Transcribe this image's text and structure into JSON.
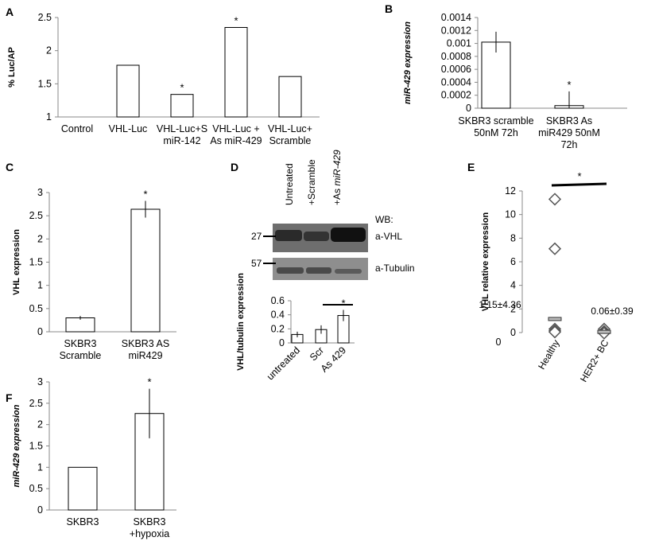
{
  "chart_data": [
    {
      "panel": "A",
      "type": "bar",
      "ylabel": "% Luc/AP",
      "ylim": [
        1,
        2.5
      ],
      "yticks": [
        "1",
        "1.5",
        "2",
        "2.5"
      ],
      "ytick_values": [
        1,
        1.5,
        2,
        2.5
      ],
      "categories": [
        [
          "Control"
        ],
        [
          "VHL-Luc"
        ],
        [
          "VHL-Luc+S",
          "miR-142"
        ],
        [
          "VHL-Luc +",
          "As miR-429"
        ],
        [
          "VHL-Luc+",
          "Scramble"
        ]
      ],
      "values": [
        1.0,
        1.78,
        1.34,
        2.35,
        1.61
      ],
      "stars": [
        "",
        "",
        "*",
        "*",
        ""
      ]
    },
    {
      "panel": "B",
      "type": "bar",
      "ylabel": "miR-429 expression",
      "ylim": [
        0,
        0.0014
      ],
      "yticks": [
        "0",
        "0.0002",
        "0.0004",
        "0.0006",
        "0.0008",
        "0.001",
        "0.0012",
        "0.0014"
      ],
      "ytick_values": [
        0,
        0.0002,
        0.0004,
        0.0006,
        0.0008,
        0.001,
        0.0012,
        0.0014
      ],
      "categories": [
        [
          "SKBR3 scramble",
          "50nM 72h"
        ],
        [
          "SKBR3 As",
          "miR429 50nM",
          "72h"
        ]
      ],
      "values": [
        0.00102,
        4e-05
      ],
      "errors": [
        0.00016,
        0.00022
      ],
      "stars": [
        "",
        "*"
      ]
    },
    {
      "panel": "C",
      "type": "bar",
      "ylabel": "VHL expression",
      "ylim": [
        0,
        3
      ],
      "yticks": [
        "0",
        "0.5",
        "1",
        "1.5",
        "2",
        "2.5",
        "3"
      ],
      "ytick_values": [
        0,
        0.5,
        1,
        1.5,
        2,
        2.5,
        3
      ],
      "categories": [
        [
          "SKBR3",
          "Scramble"
        ],
        [
          "SKBR3 AS",
          "miR429"
        ]
      ],
      "values": [
        0.3,
        2.64
      ],
      "errors": [
        0.04,
        0.18
      ],
      "stars": [
        "",
        "*"
      ]
    },
    {
      "panel": "D",
      "type": "bar",
      "ylabel": "VHL/tubulin expression",
      "ylim": [
        0,
        0.6
      ],
      "yticks": [
        "0",
        "0.2",
        "0.4",
        "0.6"
      ],
      "ytick_values": [
        0,
        0.2,
        0.4,
        0.6
      ],
      "categories": [
        "untreated",
        "Scr",
        "As 429"
      ],
      "values": [
        0.12,
        0.19,
        0.39
      ],
      "errors": [
        0.04,
        0.06,
        0.08
      ],
      "stars": [
        "",
        "",
        "*"
      ],
      "blot": {
        "lanes": [
          "Untreated",
          "+Scramble",
          "+As miR-429"
        ],
        "wb_label": "WB:",
        "markers": [
          "27",
          "57"
        ],
        "bands": [
          "a-VHL",
          "a-Tubulin"
        ]
      }
    },
    {
      "panel": "E",
      "type": "scatter",
      "ylabel": "VHL relative expression",
      "ylim": [
        0,
        12
      ],
      "yticks": [
        "0",
        "2",
        "4",
        "6",
        "8",
        "10",
        "12"
      ],
      "ytick_values": [
        0,
        2,
        4,
        6,
        8,
        10,
        12
      ],
      "x_zero_label": "0",
      "categories": [
        "Healthy",
        "HER2+ BC"
      ],
      "series": [
        {
          "name": "Healthy",
          "values": [
            11.3,
            7.1,
            0.3,
            0.15,
            0.05
          ],
          "mean": 1.15,
          "annotation": "1.15±4.36"
        },
        {
          "name": "HER2+ BC",
          "values": [
            0.3,
            0.1,
            0.0,
            -0.05
          ],
          "mean": 0.06,
          "annotation": "0.06±0.39"
        }
      ],
      "stars": [
        "*"
      ]
    },
    {
      "panel": "F",
      "type": "bar",
      "ylabel": "miR-429 expression",
      "ylim": [
        0,
        3
      ],
      "yticks": [
        "0",
        "0.5",
        "1",
        "1.5",
        "2",
        "2.5",
        "3"
      ],
      "ytick_values": [
        0,
        0.5,
        1,
        1.5,
        2,
        2.5,
        3
      ],
      "categories": [
        [
          "SKBR3"
        ],
        [
          "SKBR3",
          "+hypoxia"
        ]
      ],
      "values": [
        1.0,
        2.26
      ],
      "errors": [
        0,
        0.58
      ],
      "stars": [
        "",
        "*"
      ]
    }
  ]
}
